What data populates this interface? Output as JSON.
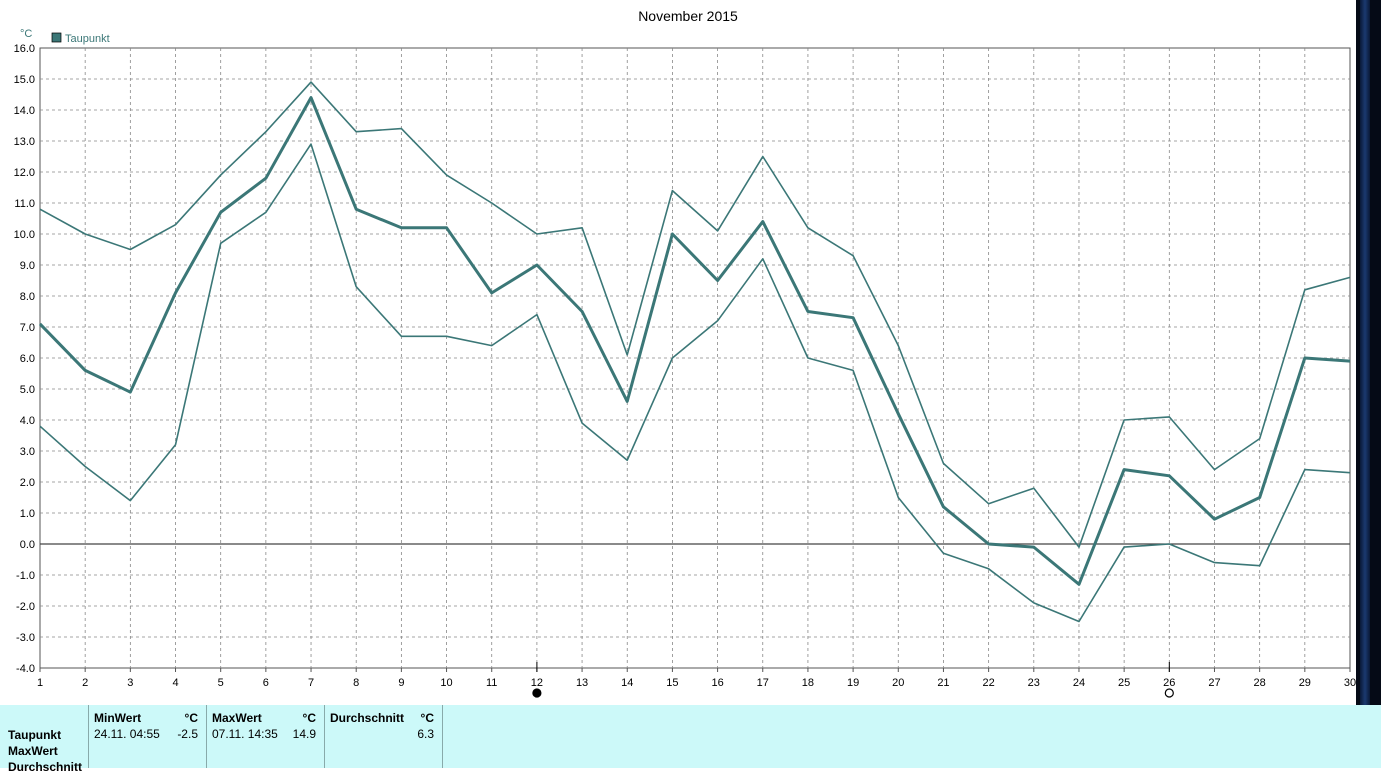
{
  "chart_data": {
    "type": "line",
    "title": "November 2015",
    "ylabel": "°C",
    "xlabel": "",
    "ylim": [
      -4,
      16
    ],
    "xlim": [
      1,
      30
    ],
    "grid": true,
    "legend_placement": "top-left",
    "legend": [
      {
        "label": "Taupunkt",
        "color": "#3b7777"
      }
    ],
    "x_ticks": [
      1,
      2,
      3,
      4,
      5,
      6,
      7,
      8,
      9,
      10,
      11,
      12,
      13,
      14,
      15,
      16,
      17,
      18,
      19,
      20,
      21,
      22,
      23,
      24,
      25,
      26,
      27,
      28,
      29,
      30
    ],
    "y_ticks": [
      "16.0",
      "15.0",
      "14.0",
      "13.0",
      "12.0",
      "11.0",
      "10.0",
      "9.0",
      "8.0",
      "7.0",
      "6.0",
      "5.0",
      "4.0",
      "3.0",
      "2.0",
      "1.0",
      "0.0",
      "-1.0",
      "-2.0",
      "-3.0",
      "-4.0"
    ],
    "series": [
      {
        "role": "max",
        "values": [
          10.8,
          10.0,
          9.5,
          10.3,
          11.9,
          13.3,
          14.9,
          13.3,
          13.4,
          11.9,
          11.0,
          10.0,
          10.2,
          6.1,
          11.4,
          10.1,
          12.5,
          10.2,
          9.3,
          6.4,
          2.6,
          1.3,
          1.8,
          -0.1,
          4.0,
          4.1,
          2.4,
          3.4,
          8.2,
          8.6
        ]
      },
      {
        "role": "mean",
        "values": [
          7.1,
          5.6,
          4.9,
          8.1,
          10.7,
          11.8,
          14.4,
          10.8,
          10.2,
          10.2,
          8.1,
          9.0,
          7.5,
          4.6,
          10.0,
          8.5,
          10.4,
          7.5,
          7.3,
          4.2,
          1.2,
          0.0,
          -0.1,
          -1.3,
          2.4,
          2.2,
          0.8,
          1.5,
          6.0,
          5.9
        ]
      },
      {
        "role": "min",
        "values": [
          3.8,
          2.5,
          1.4,
          3.2,
          9.7,
          10.7,
          12.9,
          8.3,
          6.7,
          6.7,
          6.4,
          7.4,
          3.9,
          2.7,
          6.0,
          7.2,
          9.2,
          6.0,
          5.6,
          1.5,
          -0.3,
          -0.8,
          -1.9,
          -2.5,
          -0.1,
          0.0,
          -0.6,
          -0.7,
          2.4,
          2.3
        ]
      }
    ],
    "moon_markers": [
      {
        "day": 12,
        "phase": "new-moon"
      },
      {
        "day": 26,
        "phase": "full-moon"
      }
    ],
    "line_color": "#3b7777"
  },
  "stats": {
    "row_labels": [
      "Taupunkt",
      "MaxWert",
      "Durchschnitt"
    ],
    "columns": [
      {
        "header": "MinWert",
        "unit": "°C",
        "when": "24.11.  04:55",
        "value": "-2.5"
      },
      {
        "header": "MaxWert",
        "unit": "°C",
        "when": "07.11.  14:35",
        "value": "14.9"
      },
      {
        "header": "Durchschnitt",
        "unit": "°C",
        "when": "",
        "value": "6.3"
      }
    ]
  }
}
